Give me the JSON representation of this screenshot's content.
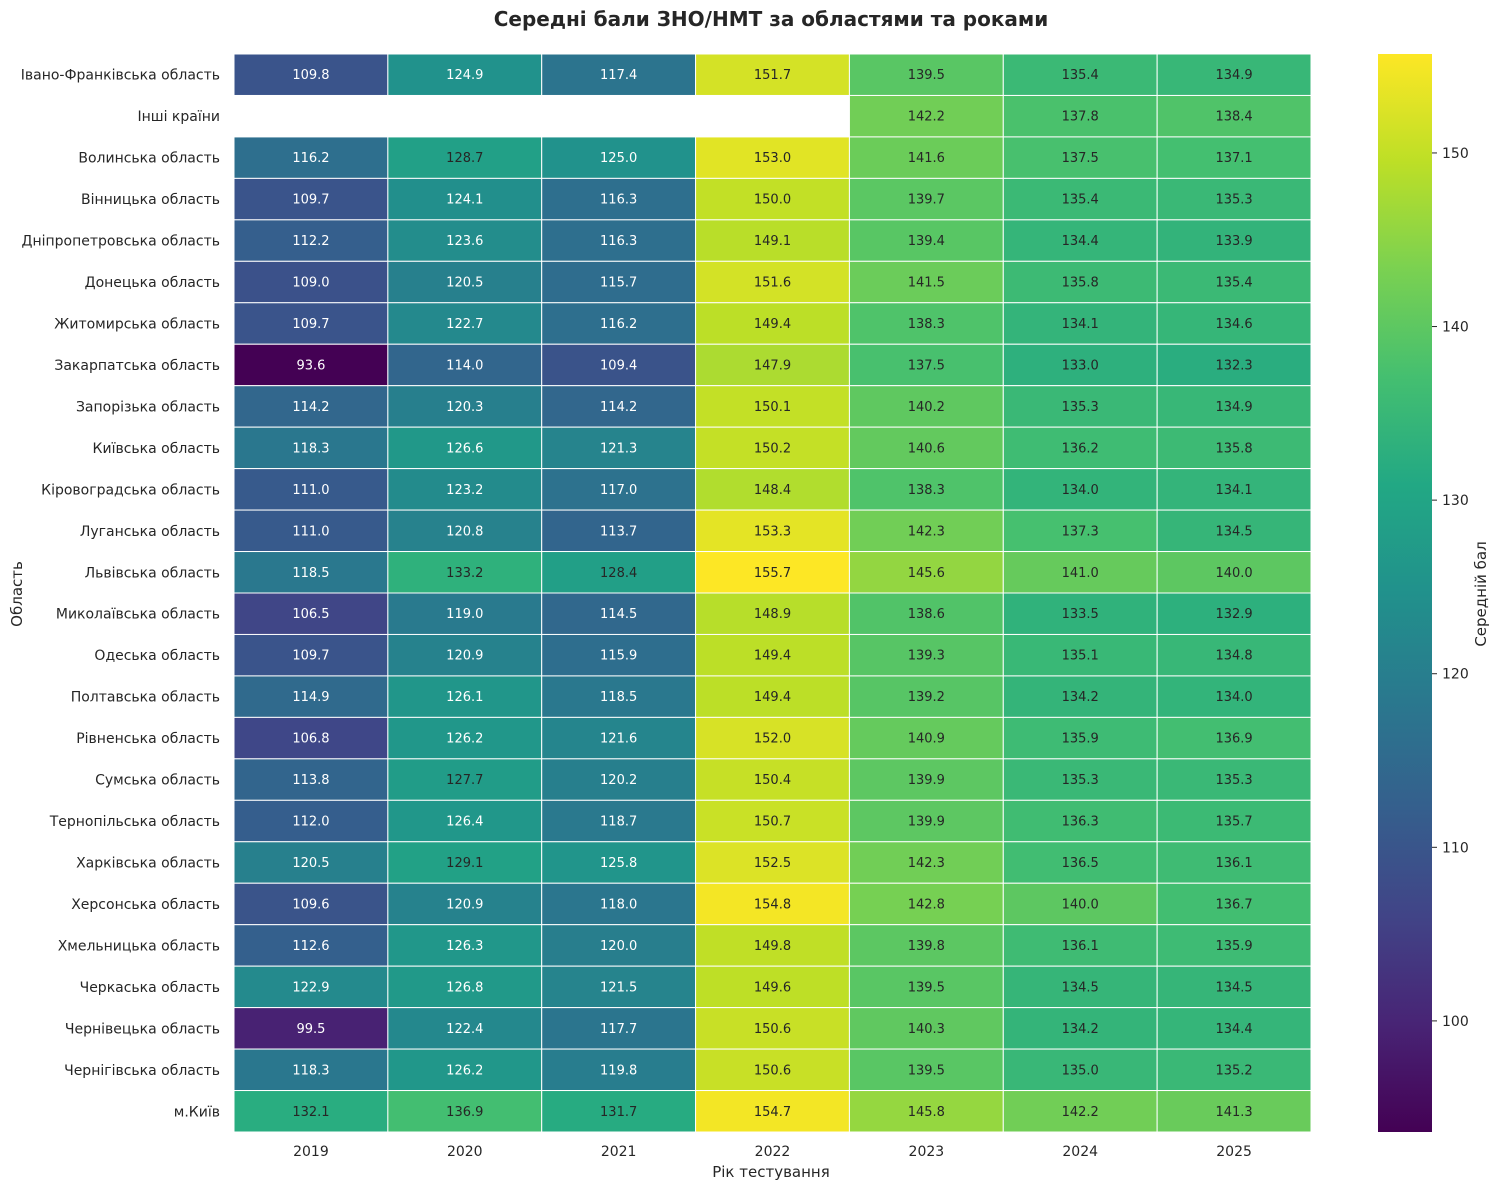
{
  "chart_data": {
    "type": "heatmap",
    "title": "Середні бали ЗНО/НМТ за областями та роками",
    "xlabel": "Рік тестування",
    "ylabel": "Область",
    "colorbar_label": "Середній бал",
    "colormap": "viridis",
    "color_range": [
      93.6,
      155.7
    ],
    "colorbar_ticks": [
      100,
      110,
      120,
      130,
      140,
      150
    ],
    "x": [
      "2019",
      "2020",
      "2021",
      "2022",
      "2023",
      "2024",
      "2025"
    ],
    "y": [
      "Івано-Франківська область",
      "Інші країни",
      "Волинська область",
      "Вінницька область",
      "Дніпропетровська область",
      "Донецька область",
      "Житомирська область",
      "Закарпатська область",
      "Запорізька область",
      "Київська область",
      "Кіровоградська область",
      "Луганська область",
      "Львівська область",
      "Миколаївська область",
      "Одеська область",
      "Полтавська область",
      "Рівненська область",
      "Сумська область",
      "Тернопільська область",
      "Харківська область",
      "Херсонська область",
      "Хмельницька область",
      "Черкаська область",
      "Чернівецька область",
      "Чернігівська область",
      "м.Київ"
    ],
    "values": [
      [
        109.8,
        124.9,
        117.4,
        151.7,
        139.5,
        135.4,
        134.9
      ],
      [
        null,
        null,
        null,
        null,
        142.2,
        137.8,
        138.4
      ],
      [
        116.2,
        128.7,
        125.0,
        153.0,
        141.6,
        137.5,
        137.1
      ],
      [
        109.7,
        124.1,
        116.3,
        150.0,
        139.7,
        135.4,
        135.3
      ],
      [
        112.2,
        123.6,
        116.3,
        149.1,
        139.4,
        134.4,
        133.9
      ],
      [
        109.0,
        120.5,
        115.7,
        151.6,
        141.5,
        135.8,
        135.4
      ],
      [
        109.7,
        122.7,
        116.2,
        149.4,
        138.3,
        134.1,
        134.6
      ],
      [
        93.6,
        114.0,
        109.4,
        147.9,
        137.5,
        133.0,
        132.3
      ],
      [
        114.2,
        120.3,
        114.2,
        150.1,
        140.2,
        135.3,
        134.9
      ],
      [
        118.3,
        126.6,
        121.3,
        150.2,
        140.6,
        136.2,
        135.8
      ],
      [
        111.0,
        123.2,
        117.0,
        148.4,
        138.3,
        134.0,
        134.1
      ],
      [
        111.0,
        120.8,
        113.7,
        153.3,
        142.3,
        137.3,
        134.5
      ],
      [
        118.5,
        133.2,
        128.4,
        155.7,
        145.6,
        141.0,
        140.0
      ],
      [
        106.5,
        119.0,
        114.5,
        148.9,
        138.6,
        133.5,
        132.9
      ],
      [
        109.7,
        120.9,
        115.9,
        149.4,
        139.3,
        135.1,
        134.8
      ],
      [
        114.9,
        126.1,
        118.5,
        149.4,
        139.2,
        134.2,
        134.0
      ],
      [
        106.8,
        126.2,
        121.6,
        152.0,
        140.9,
        135.9,
        136.9
      ],
      [
        113.8,
        127.7,
        120.2,
        150.4,
        139.9,
        135.3,
        135.3
      ],
      [
        112.0,
        126.4,
        118.7,
        150.7,
        139.9,
        136.3,
        135.7
      ],
      [
        120.5,
        129.1,
        125.8,
        152.5,
        142.3,
        136.5,
        136.1
      ],
      [
        109.6,
        120.9,
        118.0,
        154.8,
        142.8,
        140.0,
        136.7
      ],
      [
        112.6,
        126.3,
        120.0,
        149.8,
        139.8,
        136.1,
        135.9
      ],
      [
        122.9,
        126.8,
        121.5,
        149.6,
        139.5,
        134.5,
        134.5
      ],
      [
        99.5,
        122.4,
        117.7,
        150.6,
        140.3,
        134.2,
        134.4
      ],
      [
        118.3,
        126.2,
        119.8,
        150.6,
        139.5,
        135.0,
        135.2
      ],
      [
        132.1,
        136.9,
        131.7,
        154.7,
        145.8,
        142.2,
        141.3
      ]
    ]
  }
}
